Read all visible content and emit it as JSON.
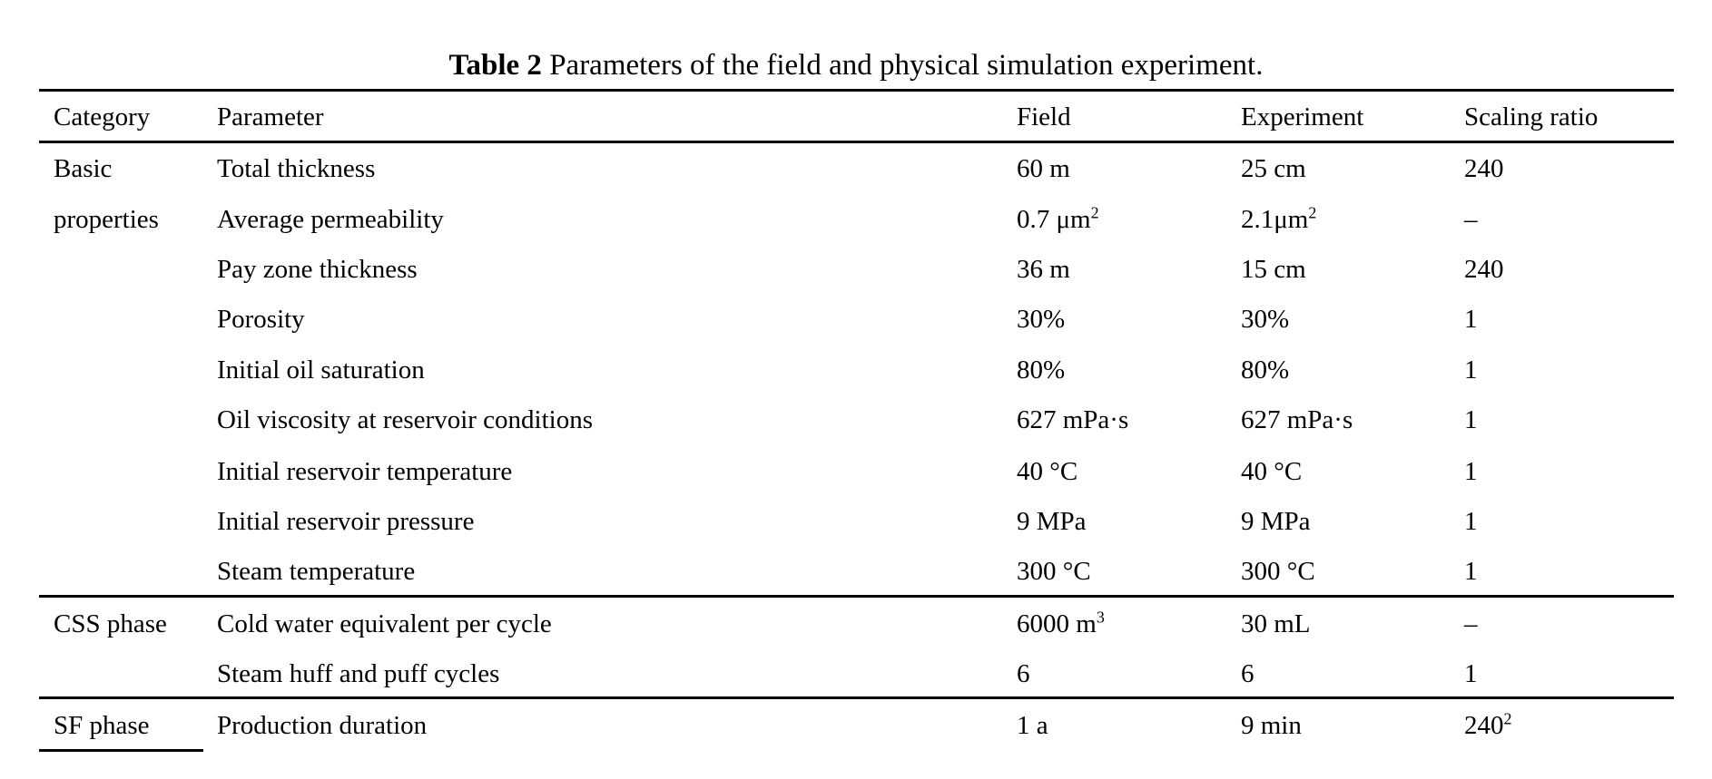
{
  "caption": {
    "label": "Table 2",
    "text": "Parameters of the field and physical simulation experiment."
  },
  "headers": [
    "Category",
    "Parameter",
    "Field",
    "Experiment",
    "Scaling ratio"
  ],
  "rows": [
    {
      "category": "Basic",
      "parameter": "Total thickness",
      "field": "60 m",
      "field_sup": "",
      "experiment": "25 cm",
      "experiment_sup": "",
      "ratio": "240",
      "ratio_sup": ""
    },
    {
      "category": "properties",
      "parameter": "Average permeability",
      "field": "0.7 μm",
      "field_sup": "2",
      "experiment": "2.1μm",
      "experiment_sup": "2",
      "ratio": "–",
      "ratio_sup": ""
    },
    {
      "category": "",
      "parameter": "Pay zone thickness",
      "field": "36 m",
      "field_sup": "",
      "experiment": "15 cm",
      "experiment_sup": "",
      "ratio": "240",
      "ratio_sup": ""
    },
    {
      "category": "",
      "parameter": "Porosity",
      "field": "30%",
      "field_sup": "",
      "experiment": "30%",
      "experiment_sup": "",
      "ratio": "1",
      "ratio_sup": ""
    },
    {
      "category": "",
      "parameter": "Initial oil saturation",
      "field": "80%",
      "field_sup": "",
      "experiment": "80%",
      "experiment_sup": "",
      "ratio": "1",
      "ratio_sup": ""
    },
    {
      "category": "",
      "parameter": "Oil viscosity at reservoir conditions",
      "field": "627 mPa·s",
      "field_sup": "",
      "experiment": "627 mPa·s",
      "experiment_sup": "",
      "ratio": "1",
      "ratio_sup": ""
    },
    {
      "category": "",
      "parameter": "Initial reservoir temperature",
      "field": "40 °C",
      "field_sup": "",
      "experiment": "40 °C",
      "experiment_sup": "",
      "ratio": "1",
      "ratio_sup": ""
    },
    {
      "category": "",
      "parameter": "Initial reservoir pressure",
      "field": "9 MPa",
      "field_sup": "",
      "experiment": "9 MPa",
      "experiment_sup": "",
      "ratio": "1",
      "ratio_sup": ""
    },
    {
      "category": "",
      "parameter": "Steam temperature",
      "field": "300 °C",
      "field_sup": "",
      "experiment": "300 °C",
      "experiment_sup": "",
      "ratio": "1",
      "ratio_sup": ""
    },
    {
      "category": "CSS phase",
      "parameter": "Cold water equivalent per cycle",
      "field": "6000 m",
      "field_sup": "3",
      "experiment": "30 mL",
      "experiment_sup": "",
      "ratio": "–",
      "ratio_sup": ""
    },
    {
      "category": "",
      "parameter": "Steam huff and puff cycles",
      "field": "6",
      "field_sup": "",
      "experiment": "6",
      "experiment_sup": "",
      "ratio": "1",
      "ratio_sup": ""
    },
    {
      "category": "SF phase",
      "parameter": "Production duration",
      "field": "1 a",
      "field_sup": "",
      "experiment": "9 min",
      "experiment_sup": "",
      "ratio": "240",
      "ratio_sup": "2"
    }
  ]
}
